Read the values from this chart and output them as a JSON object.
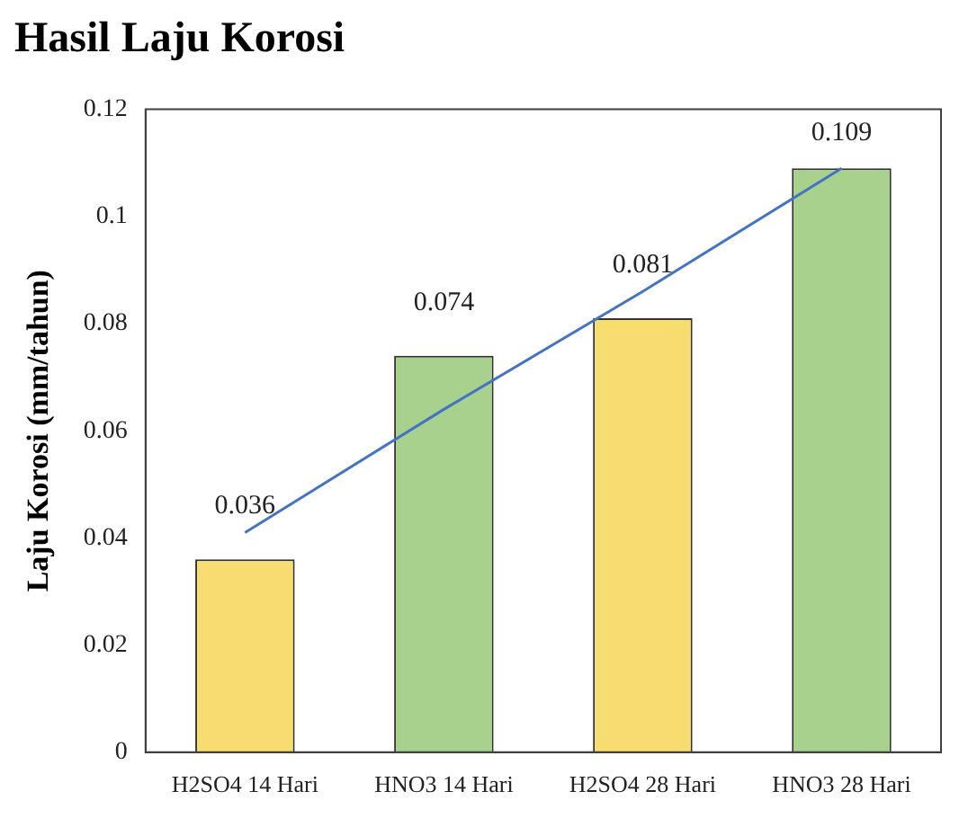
{
  "chart_data": {
    "type": "bar",
    "title": "Hasil Laju Korosi",
    "ylabel": "Laju Korosi (mm/tahun)",
    "categories": [
      "H2SO4 14 Hari",
      "HNO3 14 Hari",
      "H2SO4 28 Hari",
      "HNO3 28 Hari"
    ],
    "series": [
      {
        "values": [
          0.036,
          0.074,
          0.081,
          0.109
        ],
        "value_labels": [
          "0.036",
          "0.074",
          "0.081",
          "0.109"
        ],
        "colors": [
          "#f7dc6f",
          "#a9d18e",
          "#f7dc6f",
          "#a9d18e"
        ]
      },
      {
        "type": "line",
        "values": [
          0.041,
          0.064,
          0.086,
          0.109
        ],
        "color": "#4472c4"
      }
    ],
    "ylim": [
      0,
      0.12
    ],
    "yticks": [
      0,
      0.02,
      0.04,
      0.06,
      0.08,
      0.1,
      0.12
    ],
    "grid": false,
    "legend": false,
    "marker": "none"
  }
}
